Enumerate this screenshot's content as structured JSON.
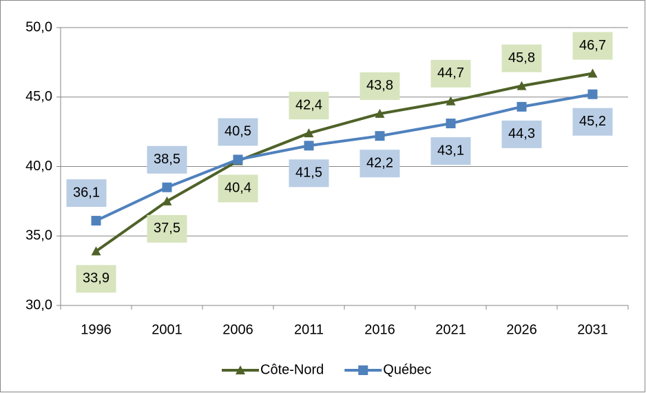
{
  "chart_data": {
    "type": "line",
    "categories": [
      "1996",
      "2001",
      "2006",
      "2011",
      "2016",
      "2021",
      "2026",
      "2031"
    ],
    "series": [
      {
        "name": "Côte-Nord",
        "color": "#4f6228",
        "label_color": "#d7e4bd",
        "marker": "triangle",
        "values": [
          33.9,
          37.5,
          40.4,
          42.4,
          43.8,
          44.7,
          45.8,
          46.7
        ],
        "value_labels": [
          "33,9",
          "37,5",
          "40,4",
          "42,4",
          "43,8",
          "44,7",
          "45,8",
          "46,7"
        ]
      },
      {
        "name": "Québec",
        "color": "#4f81bd",
        "label_color": "#b9cde5",
        "marker": "square",
        "values": [
          36.1,
          38.5,
          40.5,
          41.5,
          42.2,
          43.1,
          44.3,
          45.2
        ],
        "value_labels": [
          "36,1",
          "38,5",
          "40,5",
          "41,5",
          "42,2",
          "43,1",
          "44,3",
          "45,2"
        ]
      }
    ],
    "ylim": [
      30,
      50
    ],
    "yticks": [
      {
        "value": 30,
        "label": "30,0"
      },
      {
        "value": 35,
        "label": "35,0"
      },
      {
        "value": 40,
        "label": "40,0"
      },
      {
        "value": 45,
        "label": "45,0"
      },
      {
        "value": 50,
        "label": "50,0"
      }
    ],
    "grid": true,
    "legend": "bottom"
  }
}
